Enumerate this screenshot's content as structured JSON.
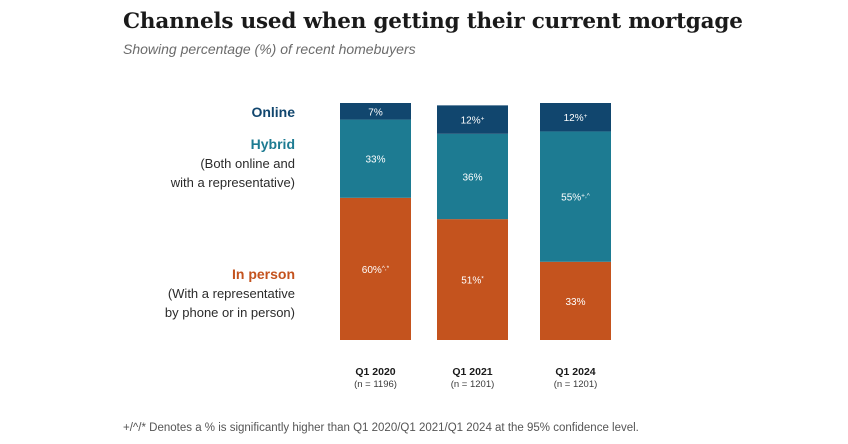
{
  "title": "Channels used when getting their current mortgage",
  "subtitle": "Showing percentage (%) of recent homebuyers",
  "legend": {
    "online": {
      "label": "Online"
    },
    "hybrid": {
      "label": "Hybrid",
      "desc_lines": [
        "(Both online and",
        "with a representative)"
      ]
    },
    "in_person": {
      "label": "In person",
      "desc_lines": [
        "(With a representative",
        "by phone or in person)"
      ]
    }
  },
  "footnote": "+/^/* Denotes a % is significantly higher than Q1 2020/Q1 2021/Q1 2024 at the 95% confidence level.",
  "chart_data": {
    "type": "bar",
    "stacked": true,
    "categories": [
      "Q1 2020",
      "Q1 2021",
      "Q1 2024"
    ],
    "category_notes": [
      "(n = 1196)",
      "(n = 1201)",
      "(n = 1201)"
    ],
    "ylim": [
      0,
      100
    ],
    "grid": false,
    "series": [
      {
        "name": "In person",
        "color": "#c4531e",
        "values": [
          60,
          51,
          33
        ],
        "labels": [
          "60%",
          "51%",
          "33%"
        ],
        "markers": [
          "^,*",
          "*",
          ""
        ]
      },
      {
        "name": "Hybrid",
        "color": "#1d7b92",
        "values": [
          33,
          36,
          55
        ],
        "labels": [
          "33%",
          "36%",
          "55%"
        ],
        "markers": [
          "",
          "",
          "+,^"
        ]
      },
      {
        "name": "Online",
        "color": "#11466e",
        "values": [
          7,
          12,
          12
        ],
        "labels": [
          "7%",
          "12%",
          "12%"
        ],
        "markers": [
          "",
          "+",
          "+"
        ]
      }
    ]
  }
}
